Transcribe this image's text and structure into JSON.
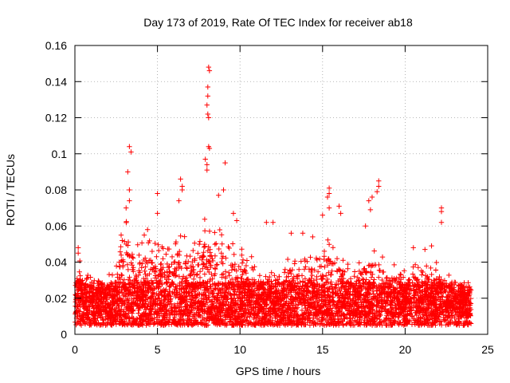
{
  "chart_data": {
    "type": "scatter",
    "title": "Day 173 of 2019, Rate Of TEC Index for receiver ab18",
    "xlabel": "GPS time / hours",
    "ylabel": "ROTI / TECUs",
    "xlim": [
      0,
      25
    ],
    "ylim": [
      0,
      0.16
    ],
    "xticks": [
      0,
      5,
      10,
      15,
      20,
      25
    ],
    "xtick_labels": [
      "0",
      "5",
      "10",
      "15",
      "20",
      "25"
    ],
    "yticks": [
      0,
      0.02,
      0.04,
      0.06,
      0.08,
      0.1,
      0.12,
      0.14,
      0.16
    ],
    "ytick_labels": [
      "0",
      "0.02",
      "0.04",
      "0.06",
      "0.08",
      "0.1",
      "0.12",
      "0.14",
      "0.16"
    ],
    "grid": true,
    "marker": "+",
    "color": "#ff0000",
    "x_range_of_data": [
      0,
      24
    ],
    "notable_points": [
      {
        "x": 8.1,
        "y": 0.148
      },
      {
        "x": 8.15,
        "y": 0.146
      },
      {
        "x": 8.05,
        "y": 0.137
      },
      {
        "x": 8.05,
        "y": 0.132
      },
      {
        "x": 8.0,
        "y": 0.127
      },
      {
        "x": 8.05,
        "y": 0.122
      },
      {
        "x": 8.1,
        "y": 0.12
      },
      {
        "x": 8.1,
        "y": 0.104
      },
      {
        "x": 8.15,
        "y": 0.103
      },
      {
        "x": 7.9,
        "y": 0.097
      },
      {
        "x": 8.0,
        "y": 0.094
      },
      {
        "x": 8.0,
        "y": 0.091
      },
      {
        "x": 9.1,
        "y": 0.095
      },
      {
        "x": 3.3,
        "y": 0.104
      },
      {
        "x": 3.4,
        "y": 0.101
      },
      {
        "x": 3.2,
        "y": 0.09
      },
      {
        "x": 3.3,
        "y": 0.08
      },
      {
        "x": 3.3,
        "y": 0.074
      },
      {
        "x": 3.1,
        "y": 0.07
      },
      {
        "x": 6.4,
        "y": 0.086
      },
      {
        "x": 6.5,
        "y": 0.082
      },
      {
        "x": 6.5,
        "y": 0.08
      },
      {
        "x": 6.3,
        "y": 0.074
      },
      {
        "x": 5.0,
        "y": 0.078
      },
      {
        "x": 5.0,
        "y": 0.067
      },
      {
        "x": 15.4,
        "y": 0.081
      },
      {
        "x": 15.4,
        "y": 0.078
      },
      {
        "x": 15.3,
        "y": 0.076
      },
      {
        "x": 15.4,
        "y": 0.07
      },
      {
        "x": 15.0,
        "y": 0.066
      },
      {
        "x": 16.0,
        "y": 0.071
      },
      {
        "x": 16.1,
        "y": 0.067
      },
      {
        "x": 18.4,
        "y": 0.085
      },
      {
        "x": 18.4,
        "y": 0.082
      },
      {
        "x": 18.3,
        "y": 0.079
      },
      {
        "x": 18.0,
        "y": 0.076
      },
      {
        "x": 17.8,
        "y": 0.074
      },
      {
        "x": 17.9,
        "y": 0.069
      },
      {
        "x": 17.6,
        "y": 0.06
      },
      {
        "x": 22.2,
        "y": 0.07
      },
      {
        "x": 22.2,
        "y": 0.068
      },
      {
        "x": 22.2,
        "y": 0.062
      },
      {
        "x": 9.0,
        "y": 0.08
      },
      {
        "x": 8.7,
        "y": 0.077
      },
      {
        "x": 9.6,
        "y": 0.067
      },
      {
        "x": 9.8,
        "y": 0.063
      },
      {
        "x": 11.6,
        "y": 0.062
      },
      {
        "x": 12.0,
        "y": 0.062
      },
      {
        "x": 0.2,
        "y": 0.048
      },
      {
        "x": 0.2,
        "y": 0.045
      },
      {
        "x": 13.1,
        "y": 0.056
      },
      {
        "x": 13.8,
        "y": 0.056
      },
      {
        "x": 14.4,
        "y": 0.054
      },
      {
        "x": 20.5,
        "y": 0.048
      },
      {
        "x": 21.2,
        "y": 0.047
      },
      {
        "x": 21.6,
        "y": 0.049
      },
      {
        "x": 10.7,
        "y": 0.043
      },
      {
        "x": 2.8,
        "y": 0.055
      },
      {
        "x": 4.2,
        "y": 0.055
      },
      {
        "x": 4.4,
        "y": 0.058
      }
    ],
    "activity_profile": [
      {
        "x": 0.0,
        "peak": 0.03
      },
      {
        "x": 0.2,
        "peak": 0.045
      },
      {
        "x": 0.5,
        "peak": 0.035
      },
      {
        "x": 1.0,
        "peak": 0.032
      },
      {
        "x": 1.5,
        "peak": 0.03
      },
      {
        "x": 2.0,
        "peak": 0.032
      },
      {
        "x": 2.5,
        "peak": 0.04
      },
      {
        "x": 2.9,
        "peak": 0.055
      },
      {
        "x": 3.2,
        "peak": 0.068
      },
      {
        "x": 3.5,
        "peak": 0.05
      },
      {
        "x": 4.0,
        "peak": 0.05
      },
      {
        "x": 4.4,
        "peak": 0.055
      },
      {
        "x": 5.0,
        "peak": 0.05
      },
      {
        "x": 5.5,
        "peak": 0.048
      },
      {
        "x": 6.0,
        "peak": 0.05
      },
      {
        "x": 6.4,
        "peak": 0.06
      },
      {
        "x": 7.0,
        "peak": 0.048
      },
      {
        "x": 7.5,
        "peak": 0.058
      },
      {
        "x": 8.0,
        "peak": 0.068
      },
      {
        "x": 8.5,
        "peak": 0.065
      },
      {
        "x": 9.0,
        "peak": 0.055
      },
      {
        "x": 9.5,
        "peak": 0.052
      },
      {
        "x": 10.0,
        "peak": 0.05
      },
      {
        "x": 10.5,
        "peak": 0.04
      },
      {
        "x": 11.0,
        "peak": 0.038
      },
      {
        "x": 11.5,
        "peak": 0.035
      },
      {
        "x": 12.0,
        "peak": 0.037
      },
      {
        "x": 12.5,
        "peak": 0.04
      },
      {
        "x": 13.0,
        "peak": 0.045
      },
      {
        "x": 13.5,
        "peak": 0.04
      },
      {
        "x": 14.0,
        "peak": 0.042
      },
      {
        "x": 14.5,
        "peak": 0.045
      },
      {
        "x": 15.0,
        "peak": 0.05
      },
      {
        "x": 15.4,
        "peak": 0.055
      },
      {
        "x": 16.0,
        "peak": 0.045
      },
      {
        "x": 16.5,
        "peak": 0.04
      },
      {
        "x": 17.0,
        "peak": 0.04
      },
      {
        "x": 17.5,
        "peak": 0.045
      },
      {
        "x": 18.0,
        "peak": 0.05
      },
      {
        "x": 18.5,
        "peak": 0.05
      },
      {
        "x": 19.0,
        "peak": 0.04
      },
      {
        "x": 19.5,
        "peak": 0.038
      },
      {
        "x": 20.0,
        "peak": 0.035
      },
      {
        "x": 20.5,
        "peak": 0.04
      },
      {
        "x": 21.0,
        "peak": 0.035
      },
      {
        "x": 21.5,
        "peak": 0.04
      },
      {
        "x": 22.0,
        "peak": 0.04
      },
      {
        "x": 22.5,
        "peak": 0.035
      },
      {
        "x": 23.0,
        "peak": 0.03
      },
      {
        "x": 23.5,
        "peak": 0.028
      },
      {
        "x": 24.0,
        "peak": 0.025
      }
    ]
  }
}
